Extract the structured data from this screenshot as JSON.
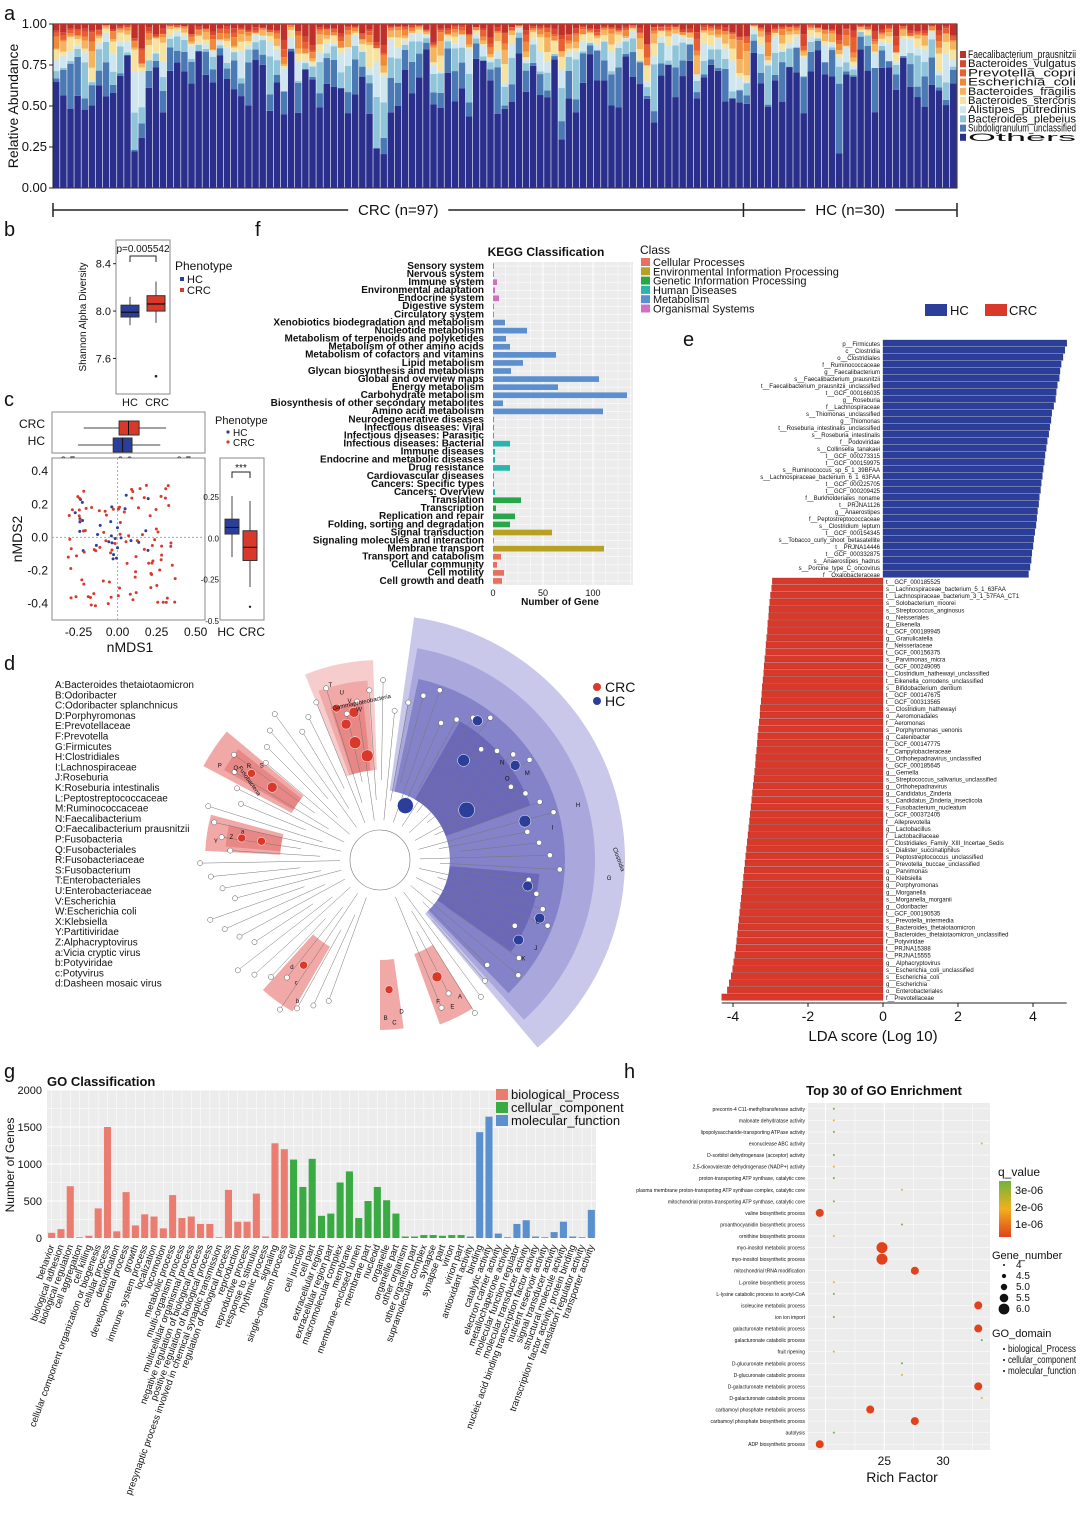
{
  "colors": {
    "hc": "#2b3f9a",
    "crc": "#d8392b",
    "navy": "#1f2a78",
    "cls_cellular": "#e8705f",
    "cls_env": "#b8a023",
    "cls_genetic": "#2aa64a",
    "cls_human": "#28b5ad",
    "cls_metab": "#5b8fd0",
    "cls_org": "#d070c0",
    "go_bio": "#ea7d70",
    "go_cell": "#3aaa43",
    "go_mol": "#5b90cf"
  },
  "panels": {
    "a": "a",
    "b": "b",
    "c": "c",
    "d": "d",
    "e": "e",
    "f": "f",
    "g": "g",
    "h": "h"
  },
  "chart_data": [
    {
      "id": "a",
      "type": "bar",
      "stacked": true,
      "ylabel": "Relative Abundance",
      "yticks": [
        "1.00",
        "0.75",
        "0.50",
        "0.25",
        "0.00"
      ],
      "ylim": [
        0,
        1
      ],
      "legend": [
        "Faecalibacterium_prausnitzii",
        "Bacteroides_vulgatus",
        "Prevotella_copri",
        "Escherichia_coli",
        "Bacteroides_fragilis",
        "Bacteroides_stercoris",
        "Alistipes_putredinis",
        "Bacteroides_plebeius",
        "Subdoligranulum_unclassified",
        "Others"
      ],
      "legend_colors": [
        "#c0302a",
        "#d9472e",
        "#e8602f",
        "#f08a3a",
        "#f6b35d",
        "#f7e3a0",
        "#cfe6ee",
        "#8fc4d9",
        "#4a79b4",
        "#2a2f8c"
      ],
      "groups": [
        {
          "label": "CRC (n=97)",
          "n": 97
        },
        {
          "label": "HC (n=30)",
          "n": 30
        }
      ]
    },
    {
      "id": "b",
      "type": "box",
      "ylabel": "Shannon Alpha Diversity",
      "yticks": [
        "8.4",
        "8.0",
        "7.6"
      ],
      "categories": [
        "HC",
        "CRC"
      ],
      "pvalue": "p=0.005542",
      "legend_title": "Phenotype",
      "legend": [
        "HC",
        "CRC"
      ]
    },
    {
      "id": "c",
      "type": "scatter",
      "xlabel": "nMDS1",
      "ylabel": "nMDS2",
      "xticks": [
        "-0.25",
        "0.00",
        "0.25",
        "0.50"
      ],
      "yticks": [
        "0.4",
        "0.2",
        "0.0",
        "-0.2",
        "-0.4"
      ],
      "top_box_categories": [
        "CRC",
        "HC"
      ],
      "top_box_ticks": [
        "-0.5",
        "0.0",
        "0.5"
      ],
      "side_box_categories": [
        "HC",
        "CRC"
      ],
      "side_box_ticks": [
        "0.25",
        "0.0",
        "-0.25",
        "-0.5"
      ],
      "sig": "***",
      "legend_title": "Phenotype",
      "legend": [
        "HC",
        "CRC"
      ]
    },
    {
      "id": "f",
      "type": "bar",
      "orientation": "horizontal",
      "title": "KEGG Classification",
      "xlabel": "Number of Gene",
      "xticks": [
        "0",
        "50",
        "100"
      ],
      "legend_title": "Class",
      "legend": [
        "Cellular Processes",
        "Environmental Information Processing",
        "Genetic Information Processing",
        "Human Diseases",
        "Metabolism",
        "Organismal Systems"
      ],
      "categories": [
        "Sensory system",
        "Nervous system",
        "Immune system",
        "Environmental adaptation",
        "Endocrine system",
        "Digestive system",
        "Circulatory system",
        "Xenobiotics biodegradation and metabolism",
        "Nucleotide metabolism",
        "Metabolism of terpenoids and polyketides",
        "Metabolism of other amino acids",
        "Metabolism of cofactors and vitamins",
        "Lipid metabolism",
        "Glycan biosynthesis and metabolism",
        "Global and overview maps",
        "Energy metabolism",
        "Carbohydrate metabolism",
        "Biosynthesis of other secondary metabolites",
        "Amino acid metabolism",
        "Neurodegenerative diseases",
        "Infectious diseases: Viral",
        "Infectious diseases: Parasitic",
        "Infectious diseases: Bacterial",
        "Immune diseases",
        "Endocrine and metabolic diseases",
        "Drug resistance",
        "Cardiovascular diseases",
        "Cancers: Specific types",
        "Cancers: Overview",
        "Translation",
        "Transcription",
        "Replication and repair",
        "Folding, sorting and degradation",
        "Signal transduction",
        "Signaling molecules and interaction",
        "Membrane transport",
        "Transport and catabolism",
        "Cellular community",
        "Cell motility",
        "Cell growth and death"
      ],
      "values": [
        1,
        1,
        4,
        2,
        6,
        1,
        1,
        12,
        34,
        13,
        17,
        63,
        30,
        18,
        106,
        65,
        134,
        10,
        110,
        1,
        1,
        1,
        17,
        2,
        2,
        17,
        1,
        1,
        2,
        28,
        3,
        22,
        17,
        59,
        1,
        111,
        8,
        4,
        11,
        9
      ],
      "classes": [
        5,
        5,
        5,
        5,
        5,
        5,
        5,
        4,
        4,
        4,
        4,
        4,
        4,
        4,
        4,
        4,
        4,
        4,
        4,
        3,
        3,
        3,
        3,
        3,
        3,
        3,
        3,
        3,
        3,
        2,
        2,
        2,
        2,
        1,
        1,
        1,
        0,
        0,
        0,
        0
      ],
      "xlim": [
        0,
        140
      ]
    },
    {
      "id": "e",
      "type": "bar",
      "orientation": "horizontal",
      "xlabel": "LDA score (Log 10)",
      "xticks": [
        "-4",
        "-2",
        "0",
        "2",
        "4"
      ],
      "xlim": [
        -4.5,
        4.9
      ],
      "legend": [
        "HC",
        "CRC"
      ],
      "hc_labels": [
        "p__Firmicutes",
        "c__Clostridia",
        "o__Clostridiales",
        "f__Ruminococcaceae",
        "g__Faecalibacterium",
        "s__Faecalibacterium_prausnitzii",
        "t__Faecalibacterium_prausnitzii_unclassified",
        "t__GCF_000166035",
        "g__Roseburia",
        "f__Lachnospiraceae",
        "s__Thiomonas_unclassified",
        "g__Thiomonas",
        "t__Roseburia_intestinalis_unclassified",
        "s__Roseburia_intestinalis",
        "f__Podoviridae",
        "s__Collinsella_tanakaei",
        "t__GCF_000273315",
        "t__GCF_000159975",
        "s__Ruminococcus_sp_5_1_39BFAA",
        "s__Lachnospiraceae_bacterium_6_1_63FAA",
        "t__GCF_000225705",
        "t__GCF_000209425",
        "f__Burkholderiales_noname",
        "t__PRJNA1126",
        "g__Anaerostipes",
        "f__Peptostreptococcaceae",
        "s__Clostridium_leptum",
        "t__GCF_000154345",
        "s__Tobacco_curly_shoot_betasatellite",
        "t__PRJNA14446",
        "t__GCF_000332875",
        "s__Anaerostipes_hadrus",
        "s__Porcine_type_C_oncovirus",
        "f__Oxalobacteraceae"
      ],
      "hc_values": [
        4.9,
        4.85,
        4.8,
        4.75,
        4.72,
        4.7,
        4.65,
        4.62,
        4.6,
        4.55,
        4.5,
        4.48,
        4.45,
        4.42,
        4.38,
        4.35,
        4.32,
        4.3,
        4.27,
        4.25,
        4.22,
        4.2,
        4.17,
        4.15,
        4.12,
        4.1,
        4.08,
        4.05,
        4.02,
        4.0,
        3.97,
        3.95,
        3.92,
        3.88
      ],
      "crc_labels": [
        "t__GCF_000185525",
        "s__Lachnospiraceae_bacterium_5_1_63FAA",
        "t__Lachnospiraceae_bacterium_3_1_57FAA_CT1",
        "s__Solobacterium_moorei",
        "s__Streptococcus_anginosus",
        "o__Neisseriales",
        "g__Eikenella",
        "t__GCF_000189945",
        "g__Granulicatella",
        "f__Neisseriaceae",
        "t__GCF_000156375",
        "s__Parvimonas_micra",
        "t__GCF_000249095",
        "t__Clostridium_hathewayi_unclassified",
        "t__Eikenella_corrodens_unclassified",
        "s__Bifidobacterium_dentium",
        "t__GCF_000147675",
        "t__GCF_000313565",
        "s__Clostridium_hathewayi",
        "o__Aeromonadales",
        "f__Aeromonas",
        "s__Porphyromonas_uenonis",
        "g__Catenibacter",
        "t__GCF_000147775",
        "f__Campylobacteraceae",
        "s__Orthohepadnavirus_unclassified",
        "t__GCF_000185645",
        "g__Gemella",
        "s__Streptococcus_salivarius_unclassified",
        "g__Orthohepadnavirus",
        "g__Candidatus_Zinderia",
        "s__Candidatus_Zinderia_insecticola",
        "s__Fusobacterium_nucleatum",
        "t__GCF_000372405",
        "f__Alleprevotella",
        "g__Lactobacillus",
        "f__Lactobacillaceae",
        "f__Clostridiales_Family_XIII_Incertae_Sedis",
        "s__Dialister_succinatiphilus",
        "s__Peptostreptococcus_unclassified",
        "s__Prevotella_buccae_unclassified",
        "g__Parvimonas",
        "g__Klebsiella",
        "g__Porphyromonas",
        "g__Morganella",
        "s__Morganella_morganii",
        "g__Odoribacter",
        "t__GCF_000190535",
        "s__Prevotella_intermedia",
        "s__Bacteroides_thetaiotaomicron",
        "t__Bacteroides_thetaiotaomicron_unclassified",
        "f__Potyviridae",
        "t__PRJNA15388",
        "t__PRJNA15555",
        "g__Alphacryptovirus",
        "s__Escherichia_coli_unclassified",
        "s__Escherichia_coli",
        "g__Escherichia",
        "o__Enterobacteriales",
        "f__Prevotellaceae"
      ],
      "crc_values": [
        -2.95,
        -2.97,
        -3.0,
        -3.02,
        -3.04,
        -3.05,
        -3.07,
        -3.08,
        -3.1,
        -3.12,
        -3.13,
        -3.15,
        -3.17,
        -3.18,
        -3.2,
        -3.22,
        -3.23,
        -3.25,
        -3.27,
        -3.28,
        -3.3,
        -3.32,
        -3.34,
        -3.35,
        -3.37,
        -3.39,
        -3.4,
        -3.42,
        -3.44,
        -3.46,
        -3.48,
        -3.5,
        -3.52,
        -3.54,
        -3.56,
        -3.58,
        -3.6,
        -3.62,
        -3.64,
        -3.66,
        -3.68,
        -3.7,
        -3.72,
        -3.74,
        -3.76,
        -3.78,
        -3.8,
        -3.82,
        -3.84,
        -3.86,
        -3.88,
        -3.9,
        -3.92,
        -3.95,
        -3.98,
        -4.01,
        -4.05,
        -4.1,
        -4.15,
        -4.3
      ]
    },
    {
      "id": "g",
      "type": "bar",
      "title": "GO Classification",
      "ylabel": "Number of Genes",
      "yticks": [
        "2000",
        "1500",
        "1000",
        "500",
        "0"
      ],
      "ylim": [
        0,
        2000
      ],
      "legend": [
        "biological_Process",
        "cellular_component",
        "molecular_function"
      ],
      "categories": [
        "behavior",
        "biological adhesion",
        "biological regulation",
        "cell aggregation",
        "cell killing",
        "cellular component organization or biogenesis",
        "cellular process",
        "detoxification",
        "developmental process",
        "growth",
        "immune system process",
        "localization",
        "locomotion",
        "metabolic process",
        "multi-organism process",
        "multicellular organismal process",
        "negative regulation of biological process",
        "positive regulation of biological process",
        "presynaptic process involved in chemical synaptic transmission",
        "regulation of biological process",
        "reproduction",
        "reproductive process",
        "response to stimulus",
        "rhythmic process",
        "signaling",
        "single-organism process",
        "cell",
        "cell junction",
        "cell part",
        "extracellular region",
        "extracellular region part",
        "macromolecular complex",
        "membrane",
        "membrane-enclosed lumen",
        "membrane part",
        "nucleoid",
        "organelle",
        "organelle part",
        "other organism",
        "other organism part",
        "supramolecular complex",
        "synapse",
        "synapse part",
        "virion",
        "virion part",
        "antioxidant activity",
        "binding",
        "catalytic activity",
        "electron carrier activity",
        "metallochaperone activity",
        "molecular function regulator",
        "molecular transducer activity",
        "nucleic acid binding transcription factor activity",
        "nutrient reservoir activity",
        "signal transducer activity",
        "structural molecule activity",
        "transcription factor activity, protein binding",
        "translation regulator activity",
        "transporter activity"
      ],
      "values": [
        70,
        120,
        700,
        10,
        30,
        400,
        1500,
        90,
        620,
        170,
        320,
        290,
        130,
        580,
        270,
        290,
        190,
        190,
        10,
        650,
        220,
        220,
        600,
        20,
        1280,
        1200,
        1060,
        690,
        1070,
        300,
        330,
        750,
        900,
        270,
        500,
        690,
        510,
        330,
        20,
        20,
        40,
        40,
        30,
        40,
        40,
        20,
        1430,
        1640,
        60,
        10,
        190,
        240,
        20,
        10,
        80,
        220,
        20,
        10,
        380
      ],
      "groups": [
        0,
        0,
        0,
        0,
        0,
        0,
        0,
        0,
        0,
        0,
        0,
        0,
        0,
        0,
        0,
        0,
        0,
        0,
        0,
        0,
        0,
        0,
        0,
        0,
        0,
        0,
        1,
        1,
        1,
        1,
        1,
        1,
        1,
        1,
        1,
        1,
        1,
        1,
        1,
        1,
        1,
        1,
        1,
        1,
        1,
        2,
        2,
        2,
        2,
        2,
        2,
        2,
        2,
        2,
        2,
        2,
        2,
        2,
        2
      ]
    },
    {
      "id": "h",
      "type": "scatter",
      "title": "Top 30 of GO Enrichment",
      "xlabel": "Rich Factor",
      "xticks": [
        "25",
        "30"
      ],
      "xlim": [
        18.5,
        34
      ],
      "legend_q_title": "q_value",
      "legend_q": [
        "3e-06",
        "2e-06",
        "1e-06"
      ],
      "legend_gene_title": "Gene_number",
      "legend_gene": [
        "4",
        "4.5",
        "5.0",
        "5.5",
        "6.0"
      ],
      "legend_domain_title": "GO_domain",
      "legend_domain": [
        "biological_Process",
        "cellular_component",
        "molecular_function"
      ],
      "terms": [
        "precorrin-4 C11-methyltransferase activity",
        "malonate dehydratase activity",
        "lipopolysaccharide-transporting ATPase activity",
        "exonuclease ABC activity",
        "D-sorbitol dehydrogenase (acceptor) activity",
        "2,5-dioxovalerate dehydrogenase (NADP+) activity",
        "proton-transporting ATP synthase, catalytic core",
        "plasma membrane proton-transporting ATP synthase complex, catalytic core",
        "mitochondrial proton-transporting ATP synthase, catalytic core",
        "valine biosynthetic process",
        "proanthocyanidin biosynthetic process",
        "ornithine biosynthetic process",
        "myo-inositol metabolic process",
        "myo-inositol biosynthetic process",
        "mitochondrial tRNA modification",
        "L-proline biosynthetic process",
        "L-lysine catabolic process to acetyl-CoA",
        "isoleucine metabolic process",
        "ion ion import",
        "galacturonate metabolic process",
        "galacturonate catabolic process",
        "fruit ripening",
        "D-glucuronate metabolic process",
        "D-glucuronate catabolic process",
        "D-galacturonate metabolic process",
        "D-galacturonate catabolic process",
        "carbamoyl phosphate metabolic process",
        "carbamoyl phosphate biosynthetic process",
        "autolysis",
        "ADP biosynthetic process"
      ],
      "rich": [
        20.7,
        20.7,
        20.7,
        33.3,
        20.7,
        20.7,
        20.7,
        26.5,
        20.7,
        19.5,
        26.5,
        20.7,
        24.8,
        24.8,
        27.6,
        20.7,
        20.7,
        33.0,
        20.7,
        33.0,
        33.3,
        20.7,
        26.5,
        26.5,
        33.0,
        33.3,
        23.8,
        27.6,
        20.7,
        19.5
      ],
      "gene_number": [
        4,
        4,
        4,
        4,
        4,
        4,
        4,
        4,
        4,
        5.5,
        4,
        4,
        6,
        6,
        5.5,
        4,
        4,
        5.5,
        4,
        5.5,
        4,
        4,
        4,
        4,
        5.5,
        4,
        5.5,
        5.5,
        4,
        5.5
      ]
    }
  ],
  "panel_d": {
    "legend": [
      "CRC",
      "HC"
    ],
    "key": [
      "A:Bacteroides thetaiotaomicron",
      "B:Odoribacter",
      "C:Odoribacter splanchnicus",
      "D:Porphyromonas",
      "E:Prevotellaceae",
      "F:Prevotella",
      "G:Firmicutes",
      "H:Clostridiales",
      "I:Lachnospiraceae",
      "J:Roseburia",
      "K:Roseburia intestinalis",
      "L:Peptostreptococcaceae",
      "M:Ruminococcaceae",
      "N:Faecalibacterium",
      "O:Faecalibacterium prausnitzii",
      "P:Fusobacteria",
      "Q:Fusobacteriales",
      "R:Fusobacteriaceae",
      "S:Fusobacterium",
      "T:Enterobacteriales",
      "U:Enterobacteriaceae",
      "V:Escherichia",
      "W:Escherichia coli",
      "X:Klebsiella",
      "Y:Partitiviridae",
      "Z:Alphacryptovirus",
      "a:Vicia cryptic virus",
      "b:Potyviridae",
      "c:Potyvirus",
      "d:Dasheen mosaic virus"
    ],
    "sector_labels": [
      "Gammaproteobacteria",
      "Fusobacteria",
      "Clostridia"
    ],
    "letters_crc": [
      "T",
      "U",
      "V",
      "W",
      "P",
      "Q",
      "R",
      "S",
      "Y",
      "Z",
      "a",
      "b",
      "c",
      "d",
      "E",
      "F",
      "A",
      "B",
      "C",
      "D"
    ],
    "letters_hc": [
      "G",
      "H",
      "I",
      "J",
      "K",
      "L",
      "M",
      "N",
      "O"
    ]
  }
}
